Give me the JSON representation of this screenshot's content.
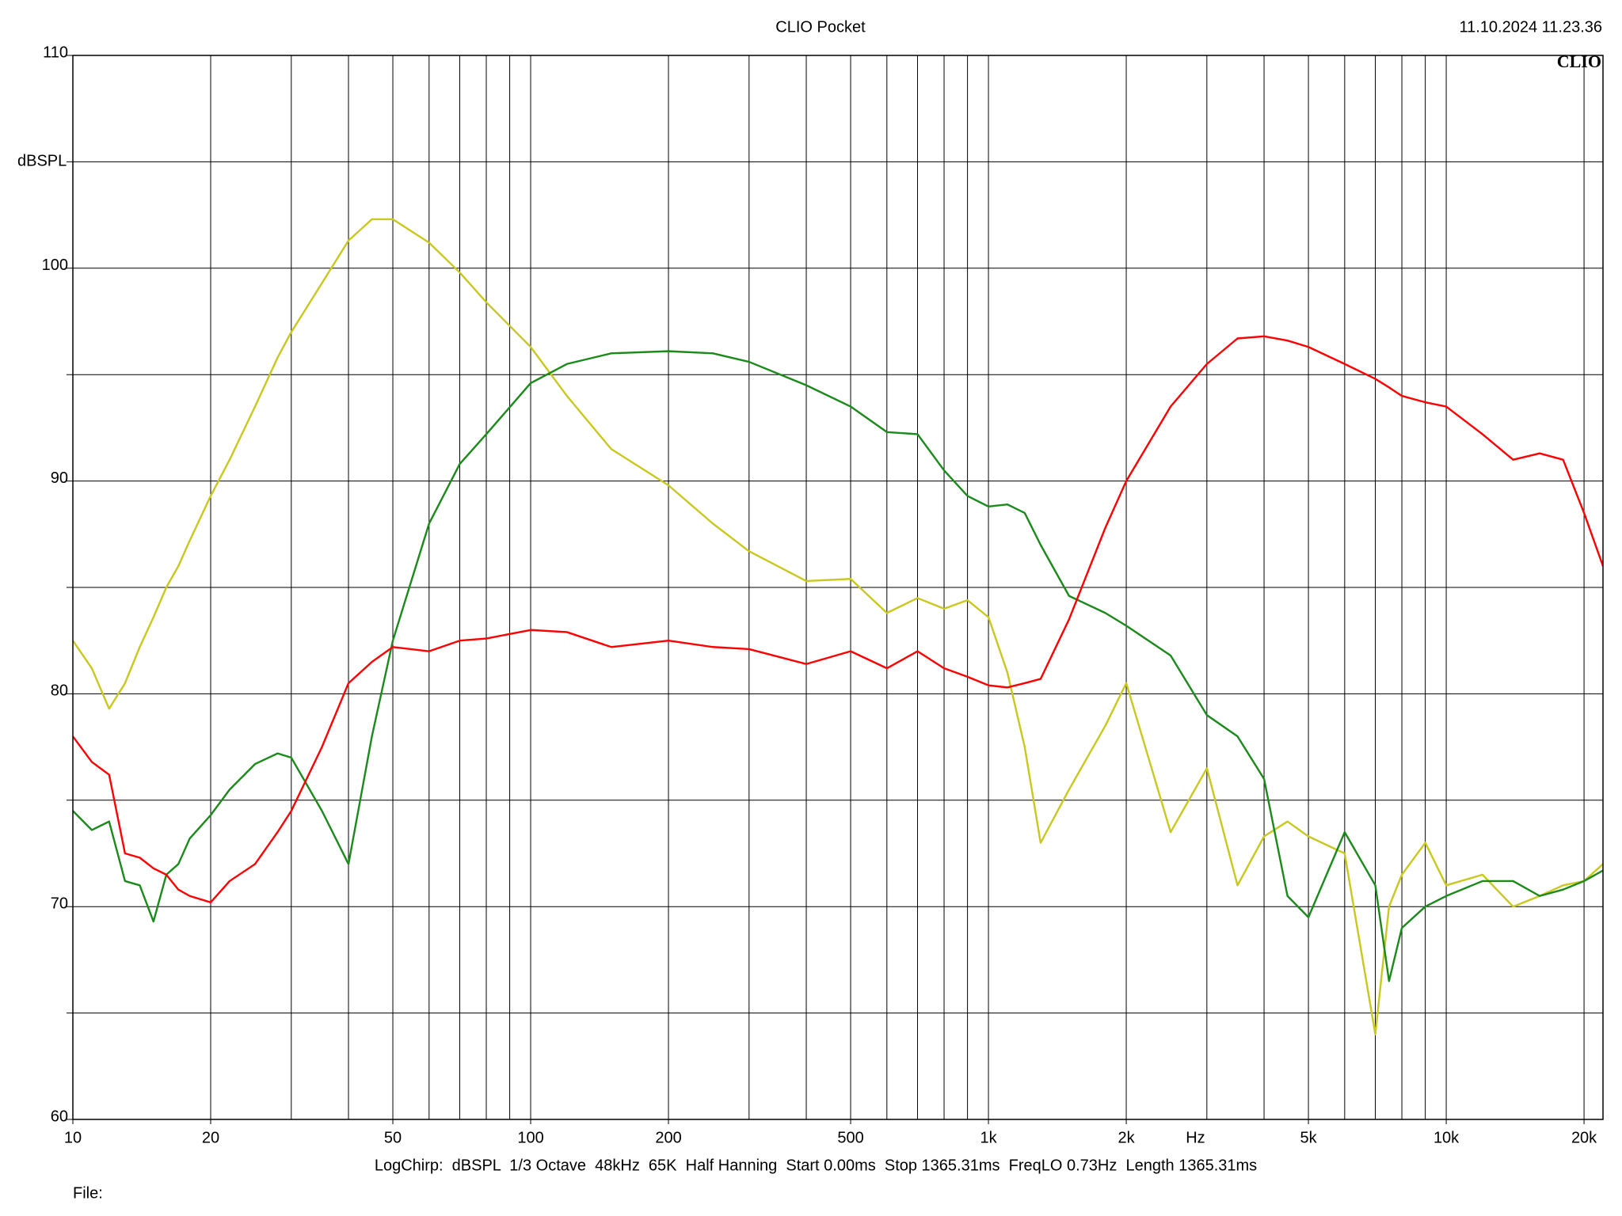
{
  "chart_data": {
    "type": "line",
    "title": "CLIO Pocket",
    "timestamp": "11.10.2024 11.23.36",
    "logo": "CLIO",
    "y_label": "dBSPL",
    "x_label": "Hz",
    "settings_text": "LogChirp:  dBSPL  1/3 Octave  48kHz  65K  Half Hanning  Start 0.00ms  Stop 1365.31ms  FreqLO 0.73Hz  Length 1365.31ms",
    "file_label": "File:",
    "xscale": "log",
    "grid": true,
    "xlim": [
      10,
      22000
    ],
    "ylim": [
      60,
      110
    ],
    "xticks": [
      10,
      20,
      50,
      100,
      200,
      500,
      {
        "value": 1000,
        "label": "1k"
      },
      {
        "value": 2000,
        "label": "2k"
      },
      {
        "value": 5000,
        "label": "5k"
      },
      {
        "value": 10000,
        "label": "10k"
      },
      {
        "value": 20000,
        "label": "20k"
      }
    ],
    "yticks": [
      60,
      70,
      80,
      90,
      100,
      110
    ],
    "x": [
      10,
      11,
      12,
      13,
      14,
      15,
      16,
      17,
      18,
      20,
      22,
      25,
      28,
      30,
      35,
      40,
      45,
      50,
      60,
      70,
      80,
      100,
      120,
      150,
      200,
      250,
      300,
      400,
      500,
      600,
      700,
      800,
      900,
      1000,
      1100,
      1200,
      1300,
      1500,
      1800,
      2000,
      2500,
      3000,
      3500,
      4000,
      4500,
      5000,
      6000,
      7000,
      7500,
      8000,
      9000,
      10000,
      12000,
      14000,
      16000,
      18000,
      20000,
      22000
    ],
    "series": [
      {
        "color": "#c8c81e",
        "values": [
          82.5,
          81.2,
          79.3,
          80.5,
          82.2,
          83.6,
          85,
          86,
          87.2,
          89.3,
          91,
          93.5,
          95.8,
          97,
          99.3,
          101.3,
          102.3,
          102.3,
          101.2,
          99.8,
          98.4,
          96.3,
          94,
          91.5,
          89.8,
          88,
          86.7,
          85.3,
          85.4,
          83.8,
          84.5,
          84,
          84.4,
          83.6,
          81,
          77.5,
          73,
          75.5,
          78.5,
          80.5,
          73.5,
          76.5,
          71,
          73.3,
          74,
          73.3,
          72.5,
          64,
          70,
          71.5,
          73,
          71,
          71.5,
          70,
          70.5,
          71,
          71.2,
          72
        ]
      },
      {
        "color": "#1a8a1a",
        "values": [
          74.5,
          73.6,
          74,
          71.2,
          71,
          69.3,
          71.5,
          72,
          73.2,
          74.3,
          75.5,
          76.7,
          77.2,
          77,
          74.5,
          72,
          78,
          82.5,
          88,
          90.8,
          92.2,
          94.6,
          95.5,
          96,
          96.1,
          96,
          95.6,
          94.5,
          93.5,
          92.3,
          92.2,
          90.5,
          89.3,
          88.8,
          88.9,
          88.5,
          87,
          84.6,
          83.8,
          83.2,
          81.8,
          79,
          78,
          76,
          70.5,
          69.5,
          73.5,
          71,
          66.5,
          69,
          70,
          70.5,
          71.2,
          71.2,
          70.5,
          70.8,
          71.2,
          71.7
        ]
      },
      {
        "color": "#ff0000",
        "values": [
          78,
          76.8,
          76.2,
          72.5,
          72.3,
          71.8,
          71.5,
          70.8,
          70.5,
          70.2,
          71.2,
          72,
          73.5,
          74.5,
          77.5,
          80.5,
          81.5,
          82.2,
          82,
          82.5,
          82.6,
          83,
          82.9,
          82.2,
          82.5,
          82.2,
          82.1,
          81.4,
          82,
          81.2,
          82,
          81.2,
          80.8,
          80.4,
          80.3,
          80.5,
          80.7,
          83.5,
          87.8,
          90,
          93.5,
          95.5,
          96.7,
          96.8,
          96.6,
          96.3,
          95.5,
          94.8,
          94.4,
          94,
          93.7,
          93.5,
          92.2,
          91,
          91.3,
          91,
          88.5,
          86
        ]
      }
    ]
  }
}
